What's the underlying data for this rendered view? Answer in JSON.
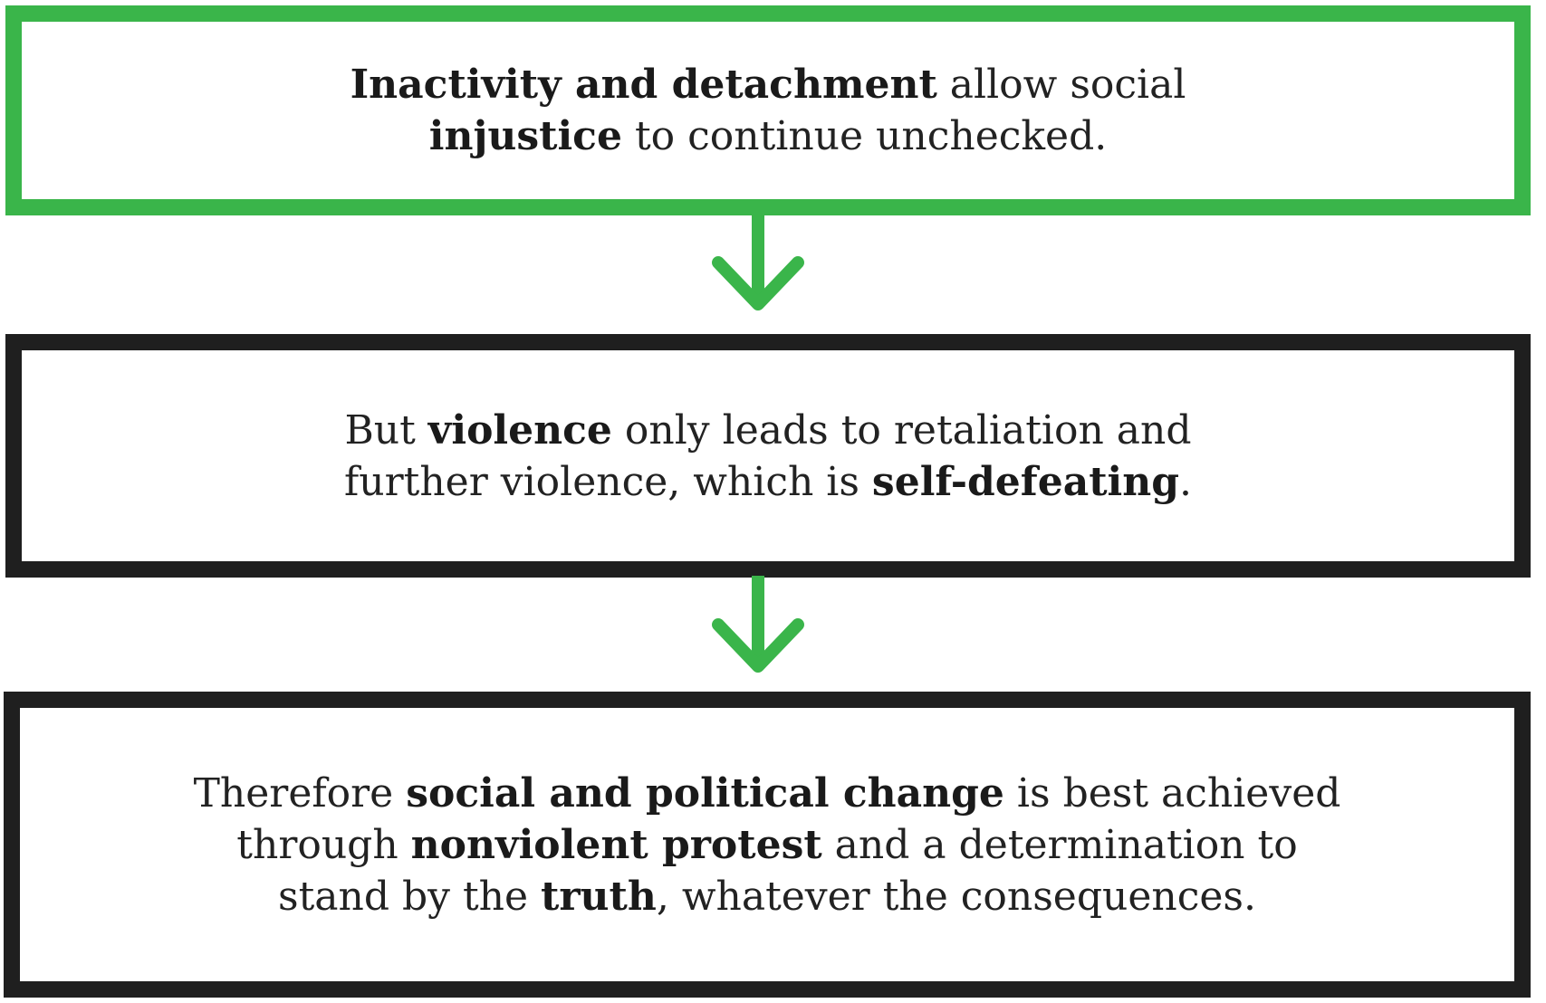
{
  "diagram": {
    "boxes": [
      {
        "line_1": {
          "b1": "Inactivity and detachment",
          "t1": " allow social"
        },
        "line_2": {
          "b1": "injustice",
          "t1": " to continue unchecked."
        }
      },
      {
        "line_1": {
          "t0": "But ",
          "b1": "violence",
          "t1": " only leads to retaliation and"
        },
        "line_2": {
          "t0": "further violence, which is ",
          "b1": "self-defeating",
          "t1": "."
        }
      },
      {
        "line_1": {
          "t0": "Therefore ",
          "b1": "social and political change",
          "t1": " is best achieved"
        },
        "line_2": {
          "t0": "through ",
          "b1": "nonviolent protest",
          "t1": " and a determination to"
        },
        "line_3": {
          "t0": "stand by the ",
          "b1": "truth",
          "t1": ", whatever the consequences."
        }
      }
    ],
    "colors": {
      "accent_green": "#3ab54a",
      "border_black": "#1f1f1f",
      "text": "#222222"
    },
    "icons": [
      "arrow-down-icon",
      "arrow-down-icon"
    ]
  }
}
